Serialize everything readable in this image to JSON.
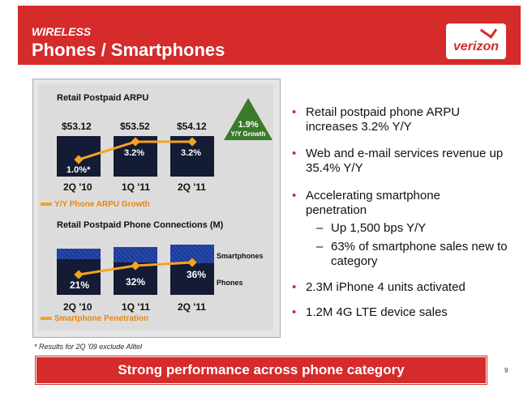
{
  "header": {
    "section": "WIRELESS",
    "title": "Phones / Smartphones",
    "logo_text": "verizon"
  },
  "arpu_chart": {
    "title": "Retail Postpaid ARPU",
    "legend": "Y/Y Phone ARPU Growth"
  },
  "connections_chart": {
    "title": "Retail Postpaid Phone Connections (M)",
    "legend": "Smartphone Penetration",
    "segment_labels": {
      "top": "Smartphones",
      "bottom": "Phones"
    }
  },
  "growth_badge": {
    "value": "1.9%",
    "label": "Y/Y Growth",
    "color": "#3a7a2b"
  },
  "chart_data": [
    {
      "type": "bar",
      "title": "Retail Postpaid ARPU",
      "categories": [
        "2Q '10",
        "1Q '11",
        "2Q '11"
      ],
      "values": [
        53.12,
        53.52,
        54.12
      ],
      "value_labels": [
        "$53.12",
        "$53.52",
        "$54.12"
      ],
      "series": [
        {
          "name": "Y/Y Phone ARPU Growth",
          "values": [
            1.0,
            3.2,
            3.2
          ],
          "labels": [
            "1.0%*",
            "3.2%",
            "3.2%"
          ]
        }
      ]
    },
    {
      "type": "bar",
      "title": "Retail Postpaid Phone Connections (M)",
      "categories": [
        "2Q '10",
        "1Q '11",
        "2Q '11"
      ],
      "series": [
        {
          "name": "Smartphone Penetration",
          "values": [
            21,
            32,
            36
          ],
          "labels": [
            "21%",
            "32%",
            "36%"
          ]
        }
      ],
      "stack_labels": [
        "Smartphones",
        "Phones"
      ]
    }
  ],
  "bullets": [
    {
      "text": "Retail postpaid phone ARPU increases 3.2% Y/Y"
    },
    {
      "text": "Web and e-mail services revenue up 35.4% Y/Y"
    },
    {
      "text": "Accelerating smartphone penetration",
      "sub": [
        {
          "text": "Up 1,500 bps Y/Y"
        },
        {
          "text": "63% of smartphone sales new to category"
        }
      ]
    },
    {
      "text": "2.3M iPhone 4 units activated"
    },
    {
      "text": "1.2M 4G LTE device sales"
    }
  ],
  "footnote": "* Results for 2Q '09 exclude Alltel",
  "banner": "Strong performance across phone category",
  "page_number": "9",
  "colors": {
    "brand_red": "#d52b2b",
    "bar_navy": "#141b35",
    "line_orange": "#f5a320"
  }
}
